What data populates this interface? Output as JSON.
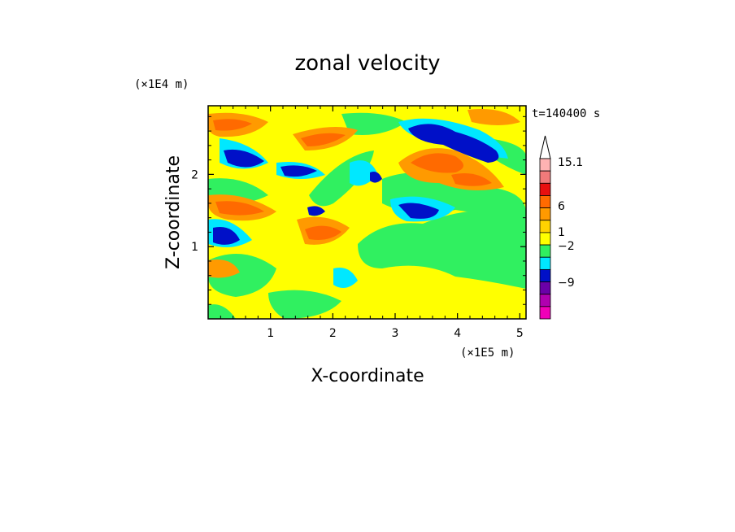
{
  "chart_data": {
    "type": "heatmap",
    "title": "zonal velocity",
    "xlabel": "X-coordinate",
    "ylabel": "Z-coordinate",
    "x_unit": "(×1E5 m)",
    "y_unit": "(×1E4 m)",
    "time_label": "t=140400 s",
    "xlim": [
      0,
      5.1
    ],
    "ylim": [
      0,
      2.95
    ],
    "x_ticks": [
      1,
      2,
      3,
      4,
      5
    ],
    "y_ticks": [
      1,
      2
    ],
    "x_tick_labels": [
      "1",
      "2",
      "3",
      "4",
      "5"
    ],
    "y_tick_labels": [
      "1",
      "2"
    ],
    "colorbar": {
      "labels": [
        "15.1",
        "6",
        "1",
        "−2",
        "−9"
      ],
      "colors_top_to_bottom": [
        "#ffb3b3",
        "#f07a7a",
        "#e81010",
        "#ff6a00",
        "#ff9a00",
        "#ffd200",
        "#ffff00",
        "#30f060",
        "#00e8ff",
        "#0010c8",
        "#6a00a8",
        "#b000b0",
        "#f000b8"
      ],
      "extend_top": true
    },
    "colors": {
      "background": "#ffffff",
      "field_base": "#ffff00",
      "red_orange": "#ff6a00",
      "green": "#30f060",
      "cyan": "#00e8ff",
      "blue": "#0010c8"
    }
  }
}
